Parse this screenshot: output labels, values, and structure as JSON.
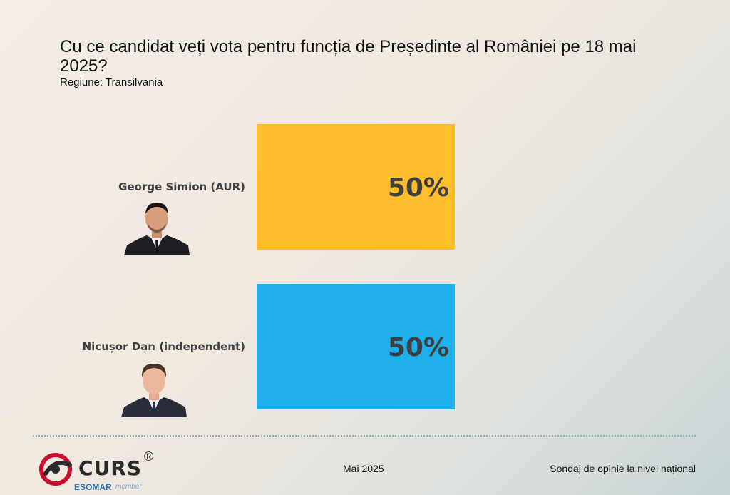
{
  "chart_data": {
    "type": "bar",
    "orientation": "horizontal",
    "title": "Cu ce candidat veți vota pentru funcția de Președinte al României pe 18 mai 2025?",
    "subtitle": "Regiune: Transilvania",
    "categories": [
      "George Simion (AUR)",
      "Nicușor Dan (independent)"
    ],
    "values": [
      50,
      50
    ],
    "value_labels": [
      "50%",
      "50%"
    ],
    "colors": [
      "#ffbf2c",
      "#1fb0ec"
    ],
    "xlim": [
      0,
      100
    ],
    "grid": false,
    "legend": "none"
  },
  "photos": [
    "George Simion portrait",
    "Nicușor Dan portrait"
  ],
  "logo": {
    "name": "CURS",
    "registered": "®",
    "esomar": "ESOMAR",
    "member": "member"
  },
  "footer": {
    "date": "Mai 2025",
    "note": "Sondaj de opinie la nivel național"
  }
}
